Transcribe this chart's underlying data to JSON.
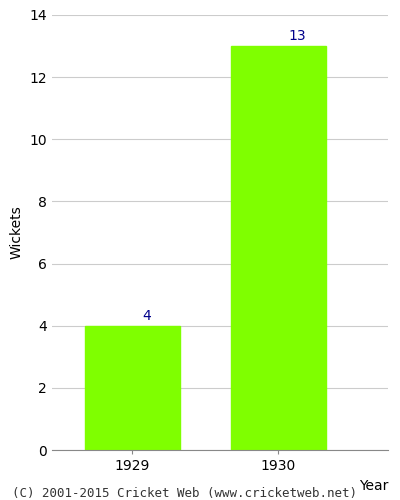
{
  "categories": [
    "1929",
    "1930"
  ],
  "values": [
    4,
    13
  ],
  "bar_color": "#7fff00",
  "bar_edgecolor": "#7fff00",
  "label_color": "#00008b",
  "label_fontsize": 10,
  "xlabel": "Year",
  "ylabel": "Wickets",
  "ylim": [
    0,
    14
  ],
  "yticks": [
    0,
    2,
    4,
    6,
    8,
    10,
    12,
    14
  ],
  "xlabel_fontsize": 10,
  "ylabel_fontsize": 10,
  "tick_fontsize": 10,
  "footer_text": "(C) 2001-2015 Cricket Web (www.cricketweb.net)",
  "footer_fontsize": 9,
  "background_color": "#ffffff",
  "axes_background_color": "#ffffff",
  "grid_color": "#cccccc",
  "bar_width": 0.65
}
